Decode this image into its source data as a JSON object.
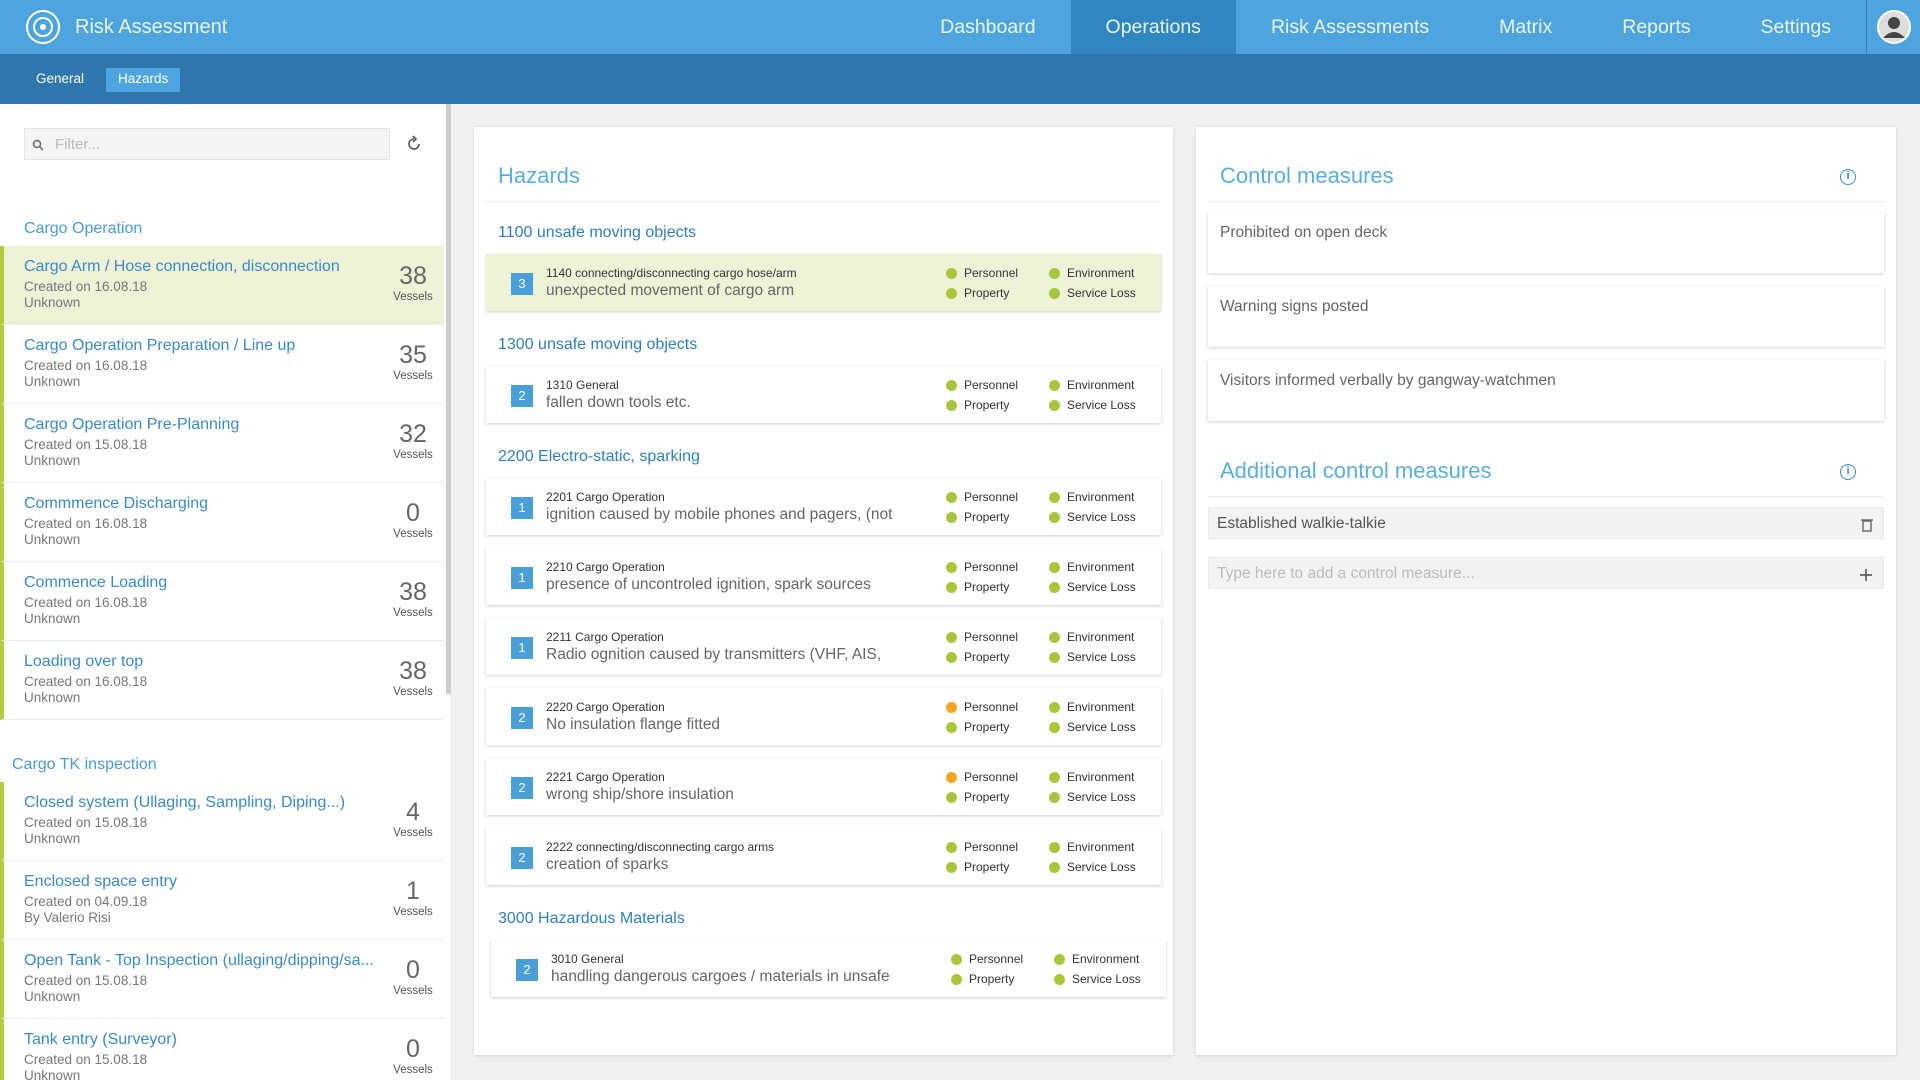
{
  "header": {
    "app_title": "Risk Assessment",
    "nav": [
      "Dashboard",
      "Operations",
      "Risk Assessments",
      "Matrix",
      "Reports",
      "Settings"
    ]
  },
  "subnav": [
    "General",
    "Hazards"
  ],
  "sidebar": {
    "filter_placeholder": "Filter...",
    "groups": [
      {
        "title": "Cargo Operation",
        "items": [
          {
            "title": "Cargo Arm / Hose connection, disconnection",
            "created": "Created on 16.08.18",
            "author": "Unknown",
            "count": 38,
            "count_label": "Vessels"
          },
          {
            "title": "Cargo Operation Preparation / Line up",
            "created": "Created on 16.08.18",
            "author": "Unknown",
            "count": 35,
            "count_label": "Vessels"
          },
          {
            "title": "Cargo Operation Pre-Planning",
            "created": "Created on 15.08.18",
            "author": "Unknown",
            "count": 32,
            "count_label": "Vessels"
          },
          {
            "title": "Commmence Discharging",
            "created": "Created on 16.08.18",
            "author": "Unknown",
            "count": 0,
            "count_label": "Vessels"
          },
          {
            "title": "Commence Loading",
            "created": "Created on 16.08.18",
            "author": "Unknown",
            "count": 38,
            "count_label": "Vessels"
          },
          {
            "title": "Loading over top",
            "created": "Created on 16.08.18",
            "author": "Unknown",
            "count": 38,
            "count_label": "Vessels"
          }
        ]
      },
      {
        "title": "Cargo TK inspection",
        "items": [
          {
            "title": "Closed system (Ullaging, Sampling, Diping...)",
            "created": "Created on 15.08.18",
            "author": "Unknown",
            "count": 4,
            "count_label": "Vessels"
          },
          {
            "title": "Enclosed space entry",
            "created": "Created on 04.09.18",
            "author": "By Valerio Risi",
            "count": 1,
            "count_label": "Vessels"
          },
          {
            "title": "Open Tank - Top Inspection (ullaging/dipping/sa...",
            "created": "Created on 15.08.18",
            "author": "Unknown",
            "count": 0,
            "count_label": "Vessels"
          },
          {
            "title": "Tank entry (Surveyor)",
            "created": "Created on 15.08.18",
            "author": "Unknown",
            "count": 0,
            "count_label": "Vessels"
          }
        ]
      }
    ]
  },
  "hazards": {
    "title": "Hazards",
    "groups": [
      {
        "title": "1100 unsafe moving objects",
        "items": [
          {
            "level": 3,
            "code": "1140 connecting/disconnecting cargo hose/arm",
            "description": "unexpected movement of cargo arm",
            "tags": [
              {
                "label": "Personnel",
                "color": "#a8c63c"
              },
              {
                "label": "Property",
                "color": "#a8c63c"
              },
              {
                "label": "Environment",
                "color": "#a8c63c"
              },
              {
                "label": "Service Loss",
                "color": "#a8c63c"
              }
            ]
          }
        ]
      },
      {
        "title": "1300 unsafe moving objects",
        "items": [
          {
            "level": 2,
            "code": "1310 General",
            "description": "fallen down tools etc.",
            "tags": [
              {
                "label": "Personnel",
                "color": "#a8c63c"
              },
              {
                "label": "Property",
                "color": "#a8c63c"
              },
              {
                "label": "Environment",
                "color": "#a8c63c"
              },
              {
                "label": "Service Loss",
                "color": "#a8c63c"
              }
            ]
          }
        ]
      },
      {
        "title": "2200 Electro-static, sparking",
        "items": [
          {
            "level": 1,
            "code": "2201 Cargo Operation",
            "description": "ignition caused by mobile phones and pagers, (not",
            "tags": [
              {
                "label": "Personnel",
                "color": "#a8c63c"
              },
              {
                "label": "Property",
                "color": "#a8c63c"
              },
              {
                "label": "Environment",
                "color": "#a8c63c"
              },
              {
                "label": "Service Loss",
                "color": "#a8c63c"
              }
            ]
          },
          {
            "level": 1,
            "code": "2210 Cargo Operation",
            "description": "presence of uncontroled ignition, spark sources",
            "tags": [
              {
                "label": "Personnel",
                "color": "#a8c63c"
              },
              {
                "label": "Property",
                "color": "#a8c63c"
              },
              {
                "label": "Environment",
                "color": "#a8c63c"
              },
              {
                "label": "Service Loss",
                "color": "#a8c63c"
              }
            ]
          },
          {
            "level": 1,
            "code": "2211 Cargo Operation",
            "description": "Radio ognition caused by transmitters (VHF, AIS,",
            "tags": [
              {
                "label": "Personnel",
                "color": "#a8c63c"
              },
              {
                "label": "Property",
                "color": "#a8c63c"
              },
              {
                "label": "Environment",
                "color": "#a8c63c"
              },
              {
                "label": "Service Loss",
                "color": "#a8c63c"
              }
            ]
          },
          {
            "level": 2,
            "code": "2220 Cargo Operation",
            "description": "No insulation flange fitted",
            "tags": [
              {
                "label": "Personnel",
                "color": "#f5a623"
              },
              {
                "label": "Property",
                "color": "#a8c63c"
              },
              {
                "label": "Environment",
                "color": "#a8c63c"
              },
              {
                "label": "Service Loss",
                "color": "#a8c63c"
              }
            ]
          },
          {
            "level": 2,
            "code": "2221 Cargo Operation",
            "description": "wrong ship/shore insulation",
            "tags": [
              {
                "label": "Personnel",
                "color": "#f5a623"
              },
              {
                "label": "Property",
                "color": "#a8c63c"
              },
              {
                "label": "Environment",
                "color": "#a8c63c"
              },
              {
                "label": "Service Loss",
                "color": "#a8c63c"
              }
            ]
          },
          {
            "level": 2,
            "code": "2222 connecting/disconnecting cargo arms",
            "description": "creation of sparks",
            "tags": [
              {
                "label": "Personnel",
                "color": "#a8c63c"
              },
              {
                "label": "Property",
                "color": "#a8c63c"
              },
              {
                "label": "Environment",
                "color": "#a8c63c"
              },
              {
                "label": "Service Loss",
                "color": "#a8c63c"
              }
            ]
          }
        ]
      },
      {
        "title": "3000 Hazardous Materials",
        "items": [
          {
            "level": 2,
            "code": "3010 General",
            "description": "handling dangerous cargoes / materials in unsafe",
            "tags": [
              {
                "label": "Personnel",
                "color": "#a8c63c"
              },
              {
                "label": "Property",
                "color": "#a8c63c"
              },
              {
                "label": "Environment",
                "color": "#a8c63c"
              },
              {
                "label": "Service Loss",
                "color": "#a8c63c"
              }
            ]
          }
        ]
      }
    ]
  },
  "control_measures": {
    "title": "Control measures",
    "items": [
      "Prohibited on open deck",
      "Warning signs posted",
      "Visitors informed verbally by gangway-watchmen"
    ]
  },
  "additional_measures": {
    "title": "Additional control measures",
    "items": [
      "Established walkie-talkie"
    ],
    "input_placeholder": "Type here to add a control measure..."
  }
}
